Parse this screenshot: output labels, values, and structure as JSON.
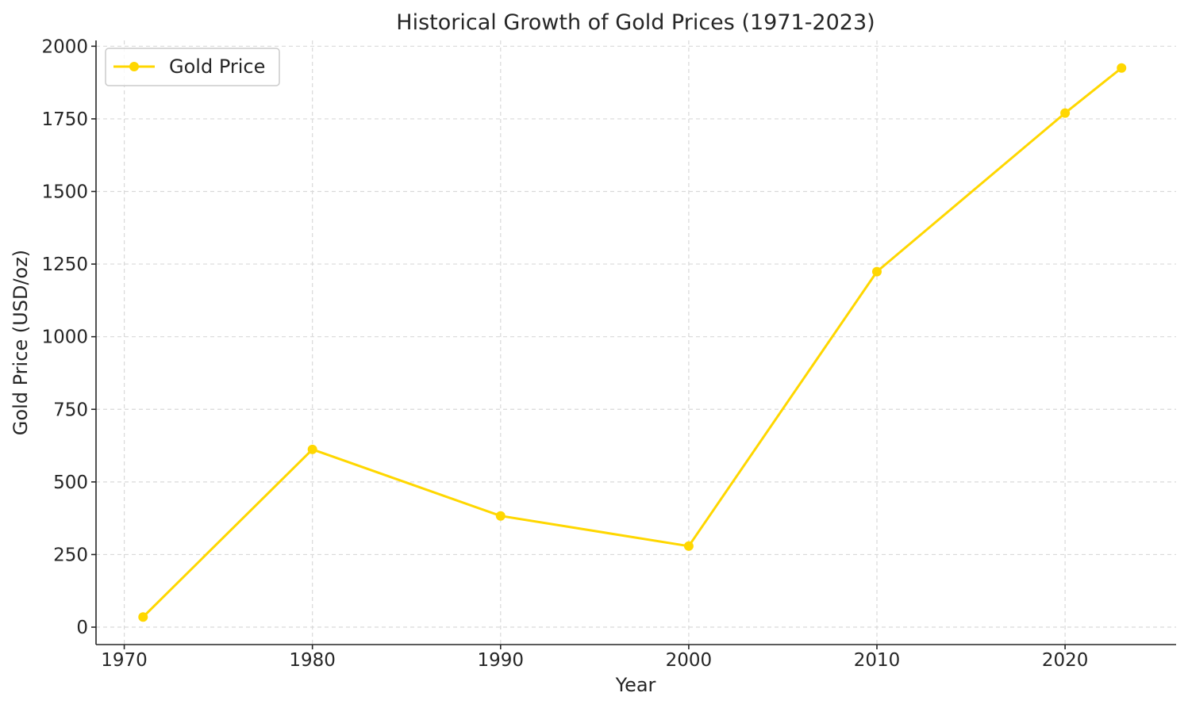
{
  "chart_data": {
    "type": "line",
    "title": "Historical Growth of Gold Prices (1971-2023)",
    "xlabel": "Year",
    "ylabel": "Gold Price (USD/oz)",
    "xlim": [
      1968.5,
      2025.9
    ],
    "ylim": [
      -60,
      2020
    ],
    "x_ticks": [
      1970,
      1980,
      1990,
      2000,
      2010,
      2020
    ],
    "y_ticks": [
      0,
      250,
      500,
      750,
      1000,
      1250,
      1500,
      1750,
      2000
    ],
    "grid": true,
    "legend_position": "upper left",
    "series": [
      {
        "name": "Gold Price",
        "color": "#ffd700",
        "marker": "circle",
        "x": [
          1971,
          1980,
          1990,
          2000,
          2010,
          2020,
          2023
        ],
        "y": [
          35,
          612,
          383,
          279,
          1224,
          1770,
          1925
        ]
      }
    ]
  }
}
